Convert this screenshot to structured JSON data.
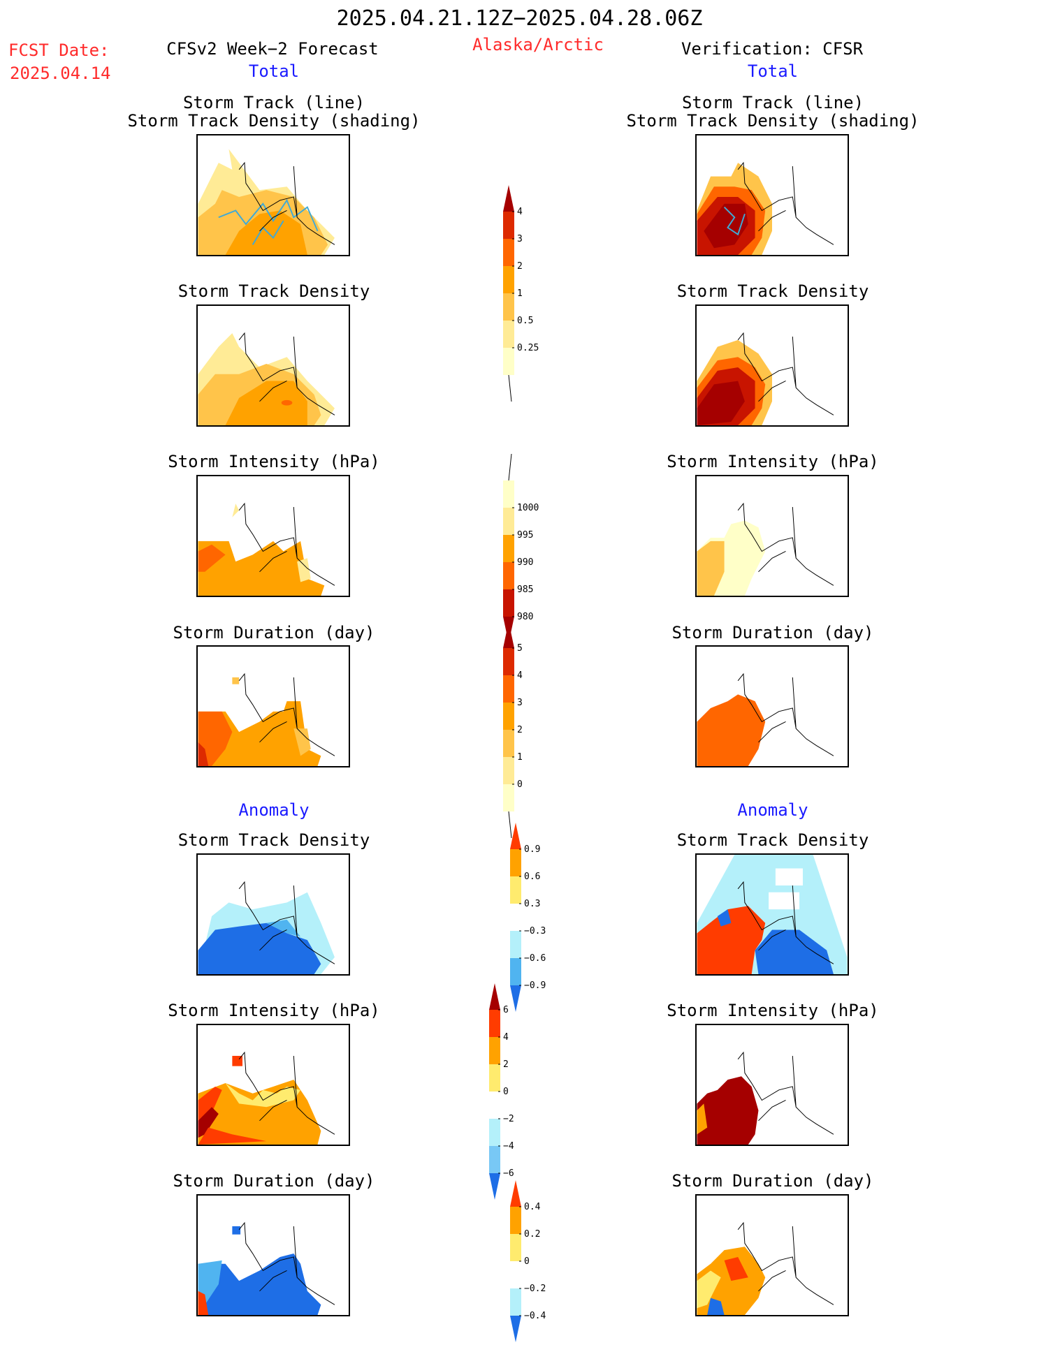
{
  "header": {
    "date_range": "2025.04.21.12Z−2025.04.28.06Z",
    "region": "Alaska/Arctic",
    "fcst_label": "FCST Date:",
    "fcst_date": "2025.04.14",
    "left_title": "CFSv2 Week−2 Forecast",
    "right_title": "Verification: CFSR",
    "total_left": "Total",
    "total_right": "Total",
    "anomaly_left": "Anomaly",
    "anomaly_right": "Anomaly"
  },
  "panels": {
    "storm_track_line": "Storm Track (line)",
    "storm_track_shading": "Storm Track Density (shading)",
    "storm_track_density": "Storm Track Density",
    "storm_intensity": "Storm Intensity (hPa)",
    "storm_duration": "Storm Duration (day)"
  },
  "colorbars": {
    "density": {
      "labels": [
        "4",
        "3",
        "2",
        "1",
        "0.5",
        "0.25"
      ],
      "colors": [
        "#a50000",
        "#dd2a00",
        "#ff6600",
        "#ffa200",
        "#ffc44a",
        "#ffeb96",
        "#ffffc8"
      ]
    },
    "intensity": {
      "labels": [
        "1000",
        "995",
        "990",
        "985",
        "980"
      ],
      "colors": [
        "#ffffc8",
        "#ffeb96",
        "#ffa200",
        "#ff6600",
        "#c81400",
        "#a50000"
      ]
    },
    "duration": {
      "labels": [
        "5",
        "4",
        "3",
        "2",
        "1",
        "0"
      ],
      "colors": [
        "#a50000",
        "#dd2a00",
        "#ff6600",
        "#ffa200",
        "#ffc44a",
        "#ffeb96",
        "#ffffc8"
      ]
    },
    "density_anom": {
      "labels": [
        "0.9",
        "0.6",
        "0.3",
        "−0.3",
        "−0.6",
        "−0.9"
      ],
      "colors": [
        "#ff3c00",
        "#ffa200",
        "#ffeb6e",
        "#ffffff",
        "#b4f0fa",
        "#50b4f0",
        "#1e6ee6"
      ]
    },
    "intensity_anom": {
      "labels": [
        "6",
        "4",
        "2",
        "0",
        "−2",
        "−4",
        "−6"
      ],
      "colors": [
        "#a50000",
        "#ff3c00",
        "#ffa200",
        "#ffeb6e",
        "#ffffff",
        "#b4f0fa",
        "#78c8f5",
        "#1e6ee6"
      ]
    },
    "duration_anom": {
      "labels": [
        "0.4",
        "0.2",
        "0",
        "−0.2",
        "−0.4"
      ],
      "colors": [
        "#ff3c00",
        "#ffa200",
        "#ffeb6e",
        "#ffffff",
        "#b4f0fa",
        "#1e6ee6"
      ]
    }
  },
  "palette": {
    "land_outline": "#000000",
    "track_line": "#3fa9d6"
  }
}
